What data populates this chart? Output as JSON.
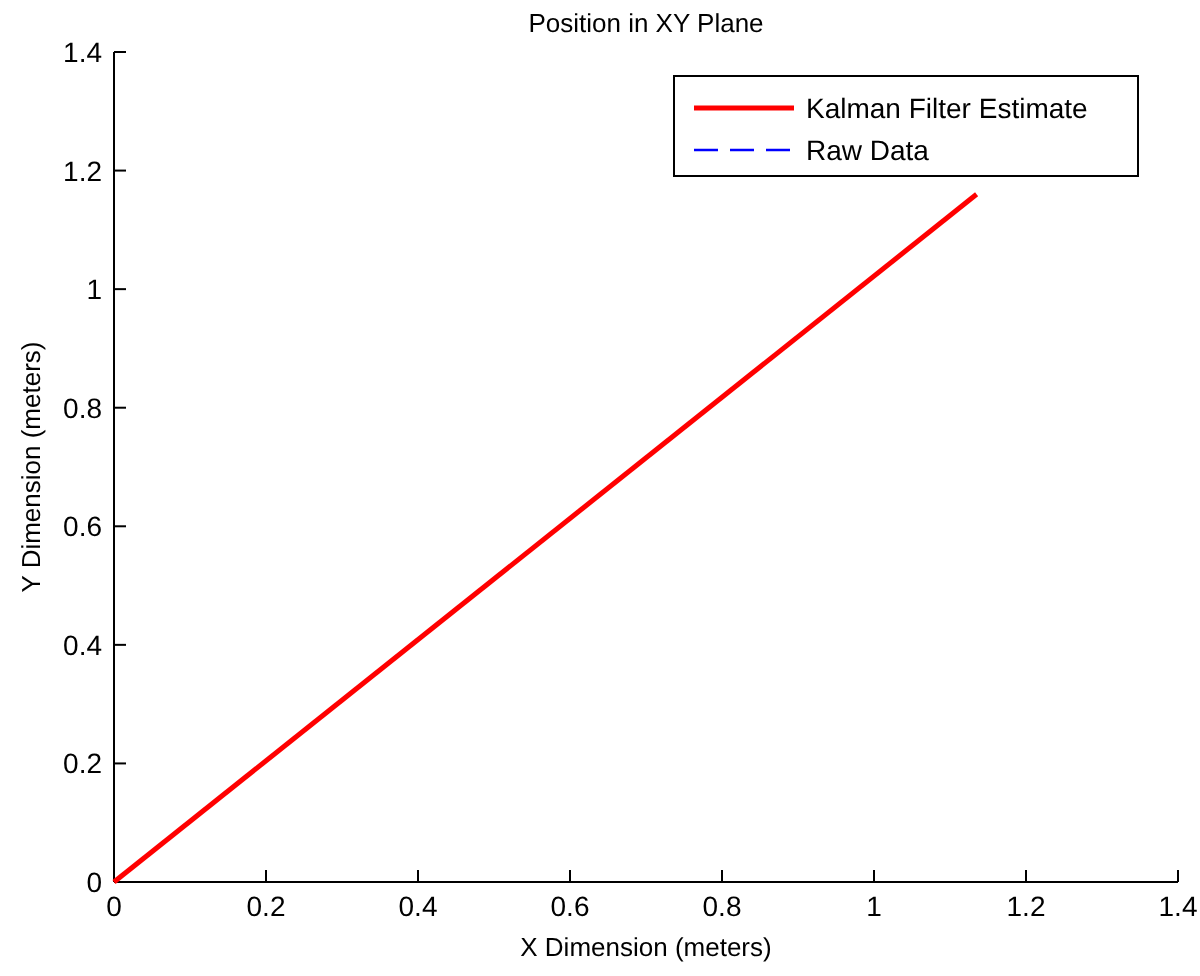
{
  "chart_data": {
    "type": "line",
    "title": "Position in XY Plane",
    "xlabel": "X Dimension (meters)",
    "ylabel": "Y Dimension (meters)",
    "xlim": [
      0,
      1.4
    ],
    "ylim": [
      0,
      1.4
    ],
    "xticks": [
      0,
      0.2,
      0.4,
      0.6,
      0.8,
      1,
      1.2,
      1.4
    ],
    "yticks": [
      0,
      0.2,
      0.4,
      0.6,
      0.8,
      1,
      1.2,
      1.4
    ],
    "grid": false,
    "legend": "top right",
    "series": [
      {
        "name": "Kalman Filter Estimate",
        "color": "#ff0000",
        "x": [
          0,
          1.135
        ],
        "values": [
          0,
          1.16
        ],
        "line_style": "solid"
      },
      {
        "name": "Raw Data",
        "color": "#0000ff",
        "values": [
          null,
          null
        ],
        "line_style": "dashed"
      }
    ]
  }
}
